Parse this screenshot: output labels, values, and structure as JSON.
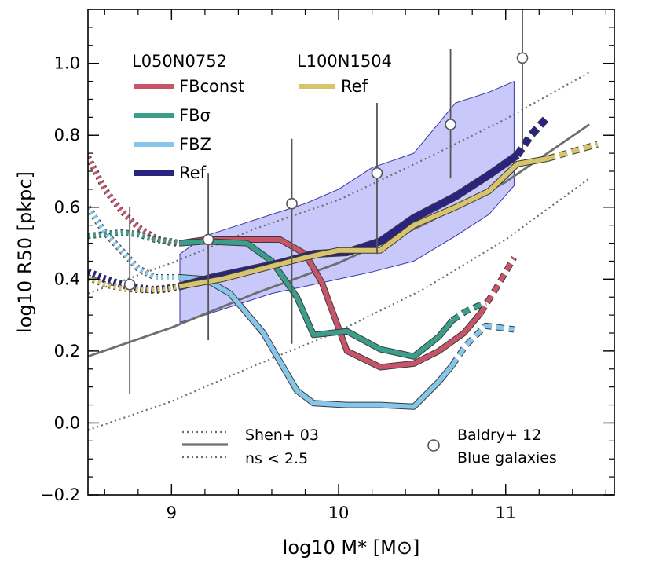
{
  "chart_data": {
    "type": "line",
    "xlabel": "log10 M* [M⊙]",
    "ylabel": "log10 R50 [pkpc]",
    "xlim": [
      8.5,
      11.65
    ],
    "ylim": [
      -0.2,
      1.15
    ],
    "xticks": [
      9,
      10,
      11
    ],
    "yticks": [
      -0.2,
      0.0,
      0.2,
      0.4,
      0.6,
      0.8,
      1.0
    ],
    "grid": false,
    "legend": {
      "group_left_title": "L050N0752",
      "group_right_title": "L100N1504",
      "entries": [
        {
          "label": "FBconst",
          "color": "#c8546a"
        },
        {
          "label": "FBσ",
          "color": "#3a9e8a"
        },
        {
          "label": "FBZ",
          "color": "#86c6ea"
        },
        {
          "label": "Ref",
          "color": "#2a2480"
        },
        {
          "label": "Ref",
          "color": "#d8c46a"
        }
      ],
      "lower_entries": [
        {
          "label": "Shen+ 03"
        },
        {
          "label": "ns < 2.5"
        },
        {
          "label_line1": "Baldry+ 12",
          "label_line2": "Blue galaxies"
        }
      ]
    },
    "band": {
      "name": "Ref scatter",
      "color": "#c8c8fa",
      "x": [
        9.05,
        9.2,
        9.4,
        9.6,
        9.8,
        10.0,
        10.2,
        10.45,
        10.7,
        10.9,
        11.05
      ],
      "upper": [
        0.47,
        0.52,
        0.55,
        0.58,
        0.61,
        0.65,
        0.71,
        0.75,
        0.89,
        0.92,
        0.95
      ],
      "lower": [
        0.28,
        0.3,
        0.33,
        0.36,
        0.38,
        0.4,
        0.42,
        0.45,
        0.52,
        0.58,
        0.66
      ]
    },
    "series": [
      {
        "name": "FBconst",
        "color": "#c8546a",
        "dotted": {
          "x": [
            8.5,
            8.6,
            8.7,
            8.8,
            8.9,
            9.0,
            9.05
          ],
          "y": [
            0.74,
            0.65,
            0.59,
            0.545,
            0.515,
            0.5,
            0.5
          ]
        },
        "solid": {
          "x": [
            9.05,
            9.2,
            9.45,
            9.65,
            9.8,
            9.9,
            10.05,
            10.25,
            10.45,
            10.6,
            10.75,
            10.85
          ],
          "y": [
            0.5,
            0.51,
            0.51,
            0.51,
            0.47,
            0.39,
            0.2,
            0.155,
            0.165,
            0.2,
            0.25,
            0.305
          ]
        },
        "dashed": {
          "x": [
            10.85,
            10.95,
            11.05
          ],
          "y": [
            0.305,
            0.38,
            0.46
          ]
        }
      },
      {
        "name": "FBσ",
        "color": "#3a9e8a",
        "dotted": {
          "x": [
            8.5,
            8.6,
            8.7,
            8.8,
            8.9,
            9.0,
            9.05
          ],
          "y": [
            0.52,
            0.525,
            0.53,
            0.525,
            0.51,
            0.505,
            0.5
          ]
        },
        "solid": {
          "x": [
            9.05,
            9.2,
            9.45,
            9.6,
            9.75,
            9.85,
            10.05,
            10.25,
            10.45,
            10.6,
            10.68
          ],
          "y": [
            0.5,
            0.505,
            0.5,
            0.45,
            0.35,
            0.245,
            0.255,
            0.205,
            0.185,
            0.24,
            0.285
          ]
        },
        "dashed": {
          "x": [
            10.68,
            10.76,
            10.88
          ],
          "y": [
            0.285,
            0.31,
            0.335
          ]
        }
      },
      {
        "name": "FBZ",
        "color": "#86c6ea",
        "dotted": {
          "x": [
            8.5,
            8.6,
            8.7,
            8.8,
            8.9,
            9.0,
            9.05
          ],
          "y": [
            0.6,
            0.53,
            0.48,
            0.43,
            0.405,
            0.405,
            0.405
          ]
        },
        "solid": {
          "x": [
            9.05,
            9.2,
            9.35,
            9.55,
            9.75,
            9.85,
            10.05,
            10.25,
            10.45,
            10.6,
            10.68
          ],
          "y": [
            0.405,
            0.4,
            0.36,
            0.25,
            0.09,
            0.055,
            0.05,
            0.05,
            0.045,
            0.115,
            0.16
          ]
        },
        "dashed": {
          "x": [
            10.68,
            10.76,
            10.88,
            11.05
          ],
          "y": [
            0.16,
            0.215,
            0.27,
            0.26
          ]
        }
      },
      {
        "name": "Ref L050N0752",
        "color": "#2a2480",
        "dotted": {
          "x": [
            8.5,
            8.6,
            8.7,
            8.8,
            8.9,
            9.0,
            9.05
          ],
          "y": [
            0.42,
            0.4,
            0.385,
            0.375,
            0.37,
            0.375,
            0.38
          ]
        },
        "solid": {
          "x": [
            9.05,
            9.25,
            9.45,
            9.65,
            9.85,
            10.05,
            10.25,
            10.45,
            10.7,
            10.9,
            11.07
          ],
          "y": [
            0.38,
            0.405,
            0.425,
            0.445,
            0.47,
            0.475,
            0.505,
            0.57,
            0.63,
            0.69,
            0.745
          ]
        },
        "dashed": {
          "x": [
            11.07,
            11.15,
            11.25
          ],
          "y": [
            0.745,
            0.8,
            0.85
          ]
        }
      },
      {
        "name": "Ref L100N1504",
        "color": "#d8c46a",
        "dotted": {
          "x": [
            8.5,
            8.6,
            8.7,
            8.8,
            8.9,
            9.0,
            9.05
          ],
          "y": [
            0.405,
            0.385,
            0.375,
            0.37,
            0.37,
            0.375,
            0.38
          ]
        },
        "solid": {
          "x": [
            9.05,
            9.3,
            9.55,
            9.8,
            10.0,
            10.25,
            10.45,
            10.7,
            10.9,
            11.07,
            11.25
          ],
          "y": [
            0.38,
            0.4,
            0.43,
            0.46,
            0.48,
            0.48,
            0.55,
            0.6,
            0.645,
            0.72,
            0.735
          ]
        },
        "dashed": {
          "x": [
            11.25,
            11.4,
            11.55
          ],
          "y": [
            0.735,
            0.755,
            0.775
          ]
        }
      }
    ],
    "shen03": {
      "color": "#6e6e6e",
      "x": [
        8.5,
        9.0,
        9.5,
        10.0,
        10.5,
        11.0,
        11.5
      ],
      "median": [
        0.185,
        0.265,
        0.36,
        0.445,
        0.55,
        0.67,
        0.83
      ],
      "upper": [
        0.36,
        0.445,
        0.54,
        0.62,
        0.73,
        0.845,
        0.975
      ],
      "lower": [
        -0.02,
        0.06,
        0.16,
        0.255,
        0.37,
        0.51,
        0.68
      ]
    },
    "baldry12": {
      "x": [
        8.75,
        9.22,
        9.72,
        10.23,
        10.67,
        11.1
      ],
      "y": [
        0.385,
        0.51,
        0.61,
        0.695,
        0.83,
        1.015
      ],
      "yerr_low": [
        0.08,
        0.23,
        0.22,
        0.47,
        0.68,
        0.76
      ],
      "yerr_high": [
        0.6,
        0.695,
        0.79,
        0.89,
        1.04,
        1.15
      ]
    }
  }
}
